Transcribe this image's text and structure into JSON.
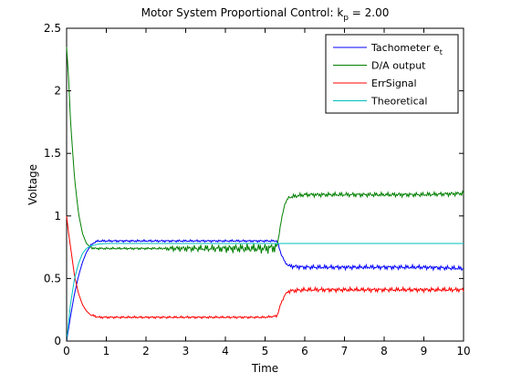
{
  "chart_data": {
    "type": "line",
    "title_prefix": "Motor System Proportional Control: k",
    "title_sub": "p",
    "title_suffix": " = 2.00",
    "xlabel": "Time",
    "ylabel": "Voltage",
    "xlim": [
      0,
      10
    ],
    "ylim": [
      0,
      2.5
    ],
    "xticks": [
      0,
      1,
      2,
      3,
      4,
      5,
      6,
      7,
      8,
      9,
      10
    ],
    "xtick_labels": [
      "0",
      "1",
      "2",
      "3",
      "4",
      "5",
      "6",
      "7",
      "8",
      "9",
      "10"
    ],
    "yticks": [
      0,
      0.5,
      1,
      1.5,
      2,
      2.5
    ],
    "ytick_labels": [
      "0",
      "0.5",
      "1",
      "1.5",
      "2",
      "2.5"
    ],
    "grid": false,
    "legend_position": "top-right",
    "series": [
      {
        "name": "Tachometer e",
        "name_sub": "t",
        "color": "#0000ff",
        "x": [
          0,
          0.1,
          0.2,
          0.3,
          0.4,
          0.5,
          0.6,
          0.7,
          0.8,
          1,
          1.5,
          2,
          3,
          4,
          5,
          5.3,
          5.4,
          5.5,
          5.6,
          6,
          7,
          8,
          9,
          10
        ],
        "y": [
          0,
          0.2,
          0.38,
          0.52,
          0.63,
          0.71,
          0.76,
          0.79,
          0.8,
          0.8,
          0.8,
          0.8,
          0.8,
          0.8,
          0.8,
          0.8,
          0.7,
          0.63,
          0.6,
          0.59,
          0.59,
          0.59,
          0.59,
          0.58
        ]
      },
      {
        "name": "D/A output",
        "color": "#007f00",
        "x": [
          0,
          0.05,
          0.1,
          0.2,
          0.3,
          0.4,
          0.5,
          0.6,
          0.7,
          1,
          1.5,
          2,
          3,
          4,
          5,
          5.3,
          5.4,
          5.5,
          5.6,
          6,
          7,
          8,
          9,
          10
        ],
        "y": [
          2.35,
          2.1,
          1.75,
          1.3,
          1.02,
          0.86,
          0.78,
          0.75,
          0.74,
          0.74,
          0.74,
          0.74,
          0.74,
          0.74,
          0.74,
          0.75,
          0.95,
          1.1,
          1.15,
          1.17,
          1.17,
          1.17,
          1.17,
          1.18
        ]
      },
      {
        "name": "ErrSignal",
        "color": "#ff0000",
        "x": [
          0,
          0.05,
          0.1,
          0.2,
          0.3,
          0.4,
          0.5,
          0.6,
          0.7,
          0.8,
          1,
          1.5,
          2,
          3,
          4,
          5,
          5.3,
          5.4,
          5.5,
          5.6,
          6,
          7,
          8,
          9,
          10
        ],
        "y": [
          1,
          0.86,
          0.75,
          0.52,
          0.38,
          0.29,
          0.24,
          0.21,
          0.2,
          0.19,
          0.19,
          0.19,
          0.19,
          0.19,
          0.19,
          0.19,
          0.2,
          0.3,
          0.37,
          0.4,
          0.41,
          0.41,
          0.41,
          0.41,
          0.41
        ]
      },
      {
        "name": "Theoretical",
        "color": "#00bfbf",
        "x": [
          0,
          0.1,
          0.2,
          0.3,
          0.4,
          0.5,
          0.6,
          0.8,
          1,
          1.5,
          2,
          3,
          4,
          5,
          6,
          7,
          8,
          9,
          10
        ],
        "y": [
          0,
          0.3,
          0.5,
          0.62,
          0.7,
          0.74,
          0.76,
          0.775,
          0.78,
          0.78,
          0.78,
          0.78,
          0.78,
          0.78,
          0.78,
          0.78,
          0.78,
          0.78,
          0.78
        ]
      }
    ]
  }
}
